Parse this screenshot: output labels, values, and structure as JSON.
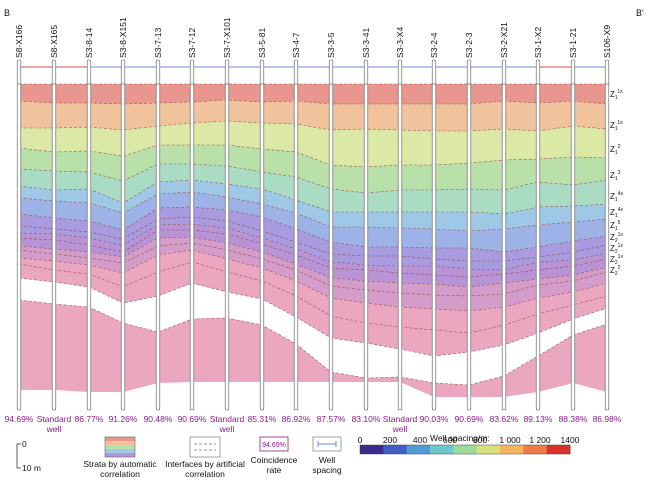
{
  "end_labels": {
    "left": "B",
    "right": "B'"
  },
  "wells": [
    {
      "name": "S8-X166",
      "rate": "94.69%"
    },
    {
      "name": "S8-X165",
      "rate": "Standard well"
    },
    {
      "name": "S3-8-14",
      "rate": "86.77%"
    },
    {
      "name": "S3-8-X151",
      "rate": "91.26%"
    },
    {
      "name": "S3-7-13",
      "rate": "90.48%"
    },
    {
      "name": "S3-7-12",
      "rate": "90.69%"
    },
    {
      "name": "S3-7-X101",
      "rate": "Standard well"
    },
    {
      "name": "S3-5-81",
      "rate": "85.31%"
    },
    {
      "name": "S3-4-7",
      "rate": "86.92%"
    },
    {
      "name": "S3-3-5",
      "rate": "87.57%"
    },
    {
      "name": "S3-3-41",
      "rate": "83.10%"
    },
    {
      "name": "S3-3-X4",
      "rate": "Standard well"
    },
    {
      "name": "S3-2-4",
      "rate": "90.03%"
    },
    {
      "name": "S3-2-3",
      "rate": "90.69%"
    },
    {
      "name": "S3-2-X21",
      "rate": "83.62%"
    },
    {
      "name": "S3-1-X2",
      "rate": "89.13%"
    },
    {
      "name": "S3-1-21",
      "rate": "88.38%"
    },
    {
      "name": "S106-X9",
      "rate": "86.98%"
    }
  ],
  "spacing_colors": [
    "#e06d6d",
    "#e06d6d",
    "#8fa0e8",
    "#8fa0e8",
    "#8fa0e8",
    "#8fa0e8",
    "#8fa0e8",
    "#8fa0e8",
    "#8fa0e8",
    "#8fa0e8",
    "#8fa0e8",
    "#8fa0e8",
    "#8fa0e8",
    "#8fa0e8",
    "#8fa0e8",
    "#e06d6d",
    "#8fa0e8"
  ],
  "zones": [
    {
      "base": "Z",
      "sub": "1",
      "sup": "1x"
    },
    {
      "base": "Z",
      "sub": "1",
      "sup": "1x"
    },
    {
      "base": "Z",
      "sub": "1",
      "sup": "2"
    },
    {
      "base": "Z",
      "sub": "1",
      "sup": "3"
    },
    {
      "base": "Z",
      "sub": "1",
      "sup": "4s"
    },
    {
      "base": "Z",
      "sub": "1",
      "sup": "4x"
    },
    {
      "base": "Z",
      "sub": "1",
      "sup": "5"
    },
    {
      "base": "Z",
      "sub": "2",
      "sup": "1s"
    },
    {
      "base": "Z",
      "sub": "2",
      "sup": "1z"
    },
    {
      "base": "Z",
      "sub": "2",
      "sup": "1x"
    },
    {
      "base": "Z",
      "sub": "2",
      "sup": "2"
    }
  ],
  "layer_colors": [
    "#e8968e",
    "#f0c39c",
    "#dbe8a6",
    "#b9e0a8",
    "#a9dcc2",
    "#9fc8e6",
    "#9db2e6",
    "#a89be0",
    "#b894d6",
    "#d49cc8",
    "#eaa7bf"
  ],
  "legend": {
    "scale_top": "0",
    "scale_bottom": "10 m",
    "strata_label": "Strata by automatic correlation",
    "interfaces_label": "Interfaces by artificial correlation",
    "coincidence_sample": "94.69%",
    "coincidence_label": "Coincidence rate",
    "spacing_label": "Well spacing",
    "colorbar_title": "Well spacing/m:",
    "colorbar_ticks": [
      "0",
      "200",
      "400",
      "600",
      "800",
      "1 000",
      "1 200",
      "1400"
    ],
    "colorbar_colors": [
      "#3b2a8f",
      "#3f5fc4",
      "#4f9bd8",
      "#6cc7cf",
      "#9bdc9c",
      "#d9e27a",
      "#f4b560",
      "#ef7b4b",
      "#d8322c"
    ]
  }
}
